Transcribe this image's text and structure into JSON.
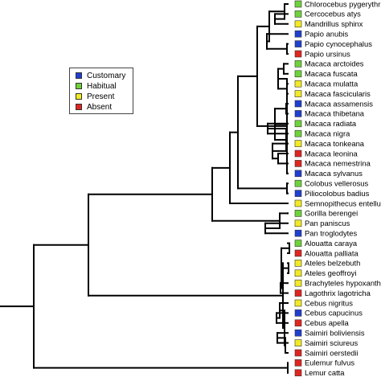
{
  "legend": {
    "items": [
      {
        "label": "Customary",
        "color": "#1f3fd1"
      },
      {
        "label": "Habitual",
        "color": "#6ed23a"
      },
      {
        "label": "Present",
        "color": "#f2ea23"
      },
      {
        "label": "Absent",
        "color": "#e0251f"
      }
    ]
  },
  "tree": {
    "taxa": [
      {
        "name": "Chlorocebus pygerythrus",
        "state": "Habitual"
      },
      {
        "name": "Cercocebus atys",
        "state": "Habitual"
      },
      {
        "name": "Mandrillus sphinx",
        "state": "Present"
      },
      {
        "name": "Papio anubis",
        "state": "Customary"
      },
      {
        "name": "Papio cynocephalus",
        "state": "Customary"
      },
      {
        "name": "Papio ursinus",
        "state": "Absent"
      },
      {
        "name": "Macaca arctoides",
        "state": "Habitual"
      },
      {
        "name": "Macaca fuscata",
        "state": "Habitual"
      },
      {
        "name": "Macaca mulatta",
        "state": "Present"
      },
      {
        "name": "Macaca fascicularis",
        "state": "Present"
      },
      {
        "name": "Macaca assamensis",
        "state": "Customary"
      },
      {
        "name": "Macaca thibetana",
        "state": "Customary"
      },
      {
        "name": "Macaca radiata",
        "state": "Habitual"
      },
      {
        "name": "Macaca nigra",
        "state": "Habitual"
      },
      {
        "name": "Macaca tonkeana",
        "state": "Present"
      },
      {
        "name": "Macaca leonina",
        "state": "Absent"
      },
      {
        "name": "Macaca nemestrina",
        "state": "Absent"
      },
      {
        "name": "Macaca sylvanus",
        "state": "Customary"
      },
      {
        "name": "Colobus vellerosus",
        "state": "Habitual"
      },
      {
        "name": "Piliocolobus badius",
        "state": "Customary"
      },
      {
        "name": "Semnopithecus entellus",
        "state": "Present"
      },
      {
        "name": "Gorilla berengei",
        "state": "Habitual"
      },
      {
        "name": "Pan paniscus",
        "state": "Present"
      },
      {
        "name": "Pan troglodytes",
        "state": "Customary"
      },
      {
        "name": "Alouatta caraya",
        "state": "Habitual"
      },
      {
        "name": "Alouatta palliata",
        "state": "Absent"
      },
      {
        "name": "Ateles belzebuth",
        "state": "Present"
      },
      {
        "name": "Ateles geoffroyi",
        "state": "Present"
      },
      {
        "name": "Brachyteles hypoxanthus",
        "state": "Present"
      },
      {
        "name": "Lagothrix lagotricha",
        "state": "Absent"
      },
      {
        "name": "Cebus nigritus",
        "state": "Present"
      },
      {
        "name": "Cebus capucinus",
        "state": "Customary"
      },
      {
        "name": "Cebus apella",
        "state": "Absent"
      },
      {
        "name": "Saimiri boliviensis",
        "state": "Customary"
      },
      {
        "name": "Saimiri sciureus",
        "state": "Present"
      },
      {
        "name": "Saimiri oerstedii",
        "state": "Absent"
      },
      {
        "name": "Eulemur fulvus",
        "state": "Absent"
      },
      {
        "name": "Lemur catta",
        "state": "Absent"
      }
    ],
    "newick": "((((((((0,(1,2)),(3,(4,5))),(((6,7),(8,9)),((10,11),((12,13),(14,(15,16)))),17)),(18,19)),20),((21),(22,23))),(((24,25),((26,27),(28,29))),((30,(31,32)),((33,34),35)))),(36,37))"
  }
}
